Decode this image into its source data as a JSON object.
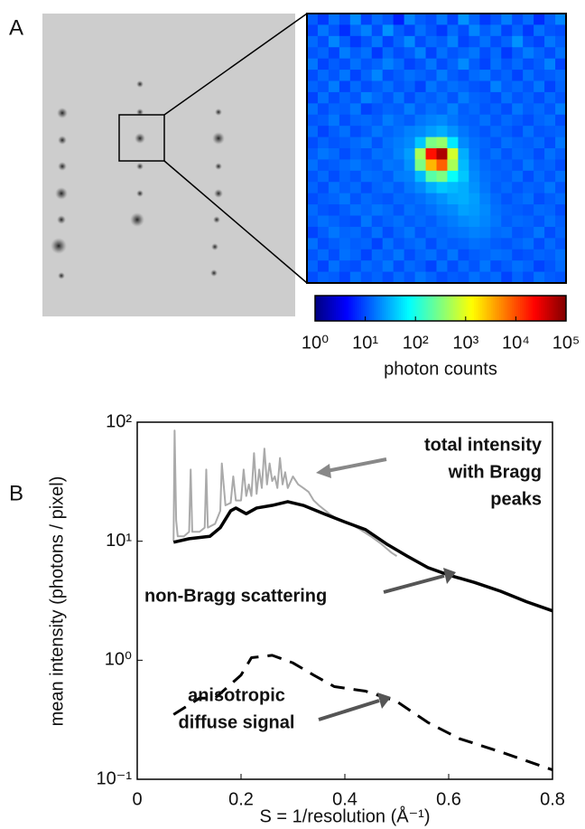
{
  "chart_data": [
    {
      "type": "heatmap",
      "panel": "A",
      "colorbar_label": "photon counts",
      "colormap": "jet",
      "scale": "log",
      "clim": [
        1,
        100000
      ],
      "cticks": [
        {
          "value": 1,
          "label": "10⁰"
        },
        {
          "value": 10,
          "label": "10¹"
        },
        {
          "value": 100,
          "label": "10²"
        },
        {
          "value": 1000,
          "label": "10³"
        },
        {
          "value": 10000,
          "label": "10⁴"
        },
        {
          "value": 100000,
          "label": "10⁵"
        }
      ],
      "matrix": [
        [
          12,
          8,
          15,
          10,
          20,
          9,
          14,
          11,
          6,
          18,
          12,
          10,
          16,
          9,
          22,
          13,
          8,
          11,
          17,
          10,
          14,
          7,
          12,
          19
        ],
        [
          9,
          16,
          11,
          7,
          13,
          18,
          10,
          22,
          12,
          9,
          15,
          11,
          8,
          14,
          10,
          19,
          12,
          16,
          9,
          13,
          8,
          15,
          11,
          10
        ],
        [
          14,
          10,
          19,
          12,
          8,
          11,
          16,
          9,
          13,
          20,
          10,
          14,
          12,
          18,
          9,
          11,
          15,
          10,
          13,
          22,
          11,
          9,
          16,
          12
        ],
        [
          11,
          13,
          9,
          17,
          12,
          15,
          8,
          14,
          10,
          12,
          18,
          9,
          15,
          11,
          13,
          16,
          10,
          14,
          8,
          12,
          17,
          13,
          10,
          15
        ],
        [
          16,
          9,
          12,
          10,
          15,
          11,
          13,
          18,
          14,
          9,
          11,
          16,
          10,
          13,
          20,
          12,
          9,
          15,
          11,
          14,
          10,
          12,
          18,
          9
        ],
        [
          10,
          14,
          11,
          16,
          9,
          13,
          19,
          10,
          12,
          15,
          13,
          11,
          17,
          12,
          10,
          14,
          16,
          11,
          13,
          9,
          15,
          11,
          12,
          14
        ],
        [
          13,
          11,
          17,
          9,
          14,
          10,
          12,
          15,
          11,
          13,
          9,
          16,
          12,
          15,
          13,
          11,
          10,
          18,
          12,
          14,
          11,
          16,
          9,
          13
        ],
        [
          9,
          15,
          10,
          13,
          11,
          18,
          14,
          11,
          16,
          10,
          14,
          12,
          15,
          11,
          17,
          13,
          12,
          10,
          15,
          11,
          13,
          10,
          14,
          11
        ],
        [
          15,
          10,
          13,
          12,
          16,
          9,
          11,
          13,
          12,
          17,
          12,
          15,
          13,
          18,
          12,
          14,
          11,
          13,
          10,
          16,
          12,
          14,
          11,
          17
        ],
        [
          11,
          12,
          16,
          10,
          13,
          14,
          12,
          17,
          14,
          12,
          16,
          18,
          20,
          16,
          13,
          12,
          15,
          11,
          14,
          12,
          10,
          13,
          15,
          10
        ],
        [
          14,
          9,
          12,
          15,
          10,
          12,
          16,
          13,
          15,
          18,
          20,
          25,
          30,
          22,
          16,
          13,
          11,
          14,
          12,
          10,
          15,
          11,
          12,
          13
        ],
        [
          10,
          13,
          11,
          12,
          14,
          16,
          11,
          15,
          17,
          20,
          40,
          300,
          400,
          60,
          20,
          15,
          13,
          11,
          15,
          13,
          12,
          14,
          10,
          16
        ],
        [
          12,
          16,
          14,
          10,
          13,
          11,
          15,
          14,
          18,
          25,
          500,
          20000,
          60000,
          800,
          30,
          16,
          12,
          15,
          11,
          14,
          13,
          10,
          15,
          12
        ],
        [
          15,
          11,
          12,
          14,
          16,
          13,
          12,
          16,
          15,
          22,
          300,
          3000,
          8000,
          500,
          35,
          18,
          14,
          12,
          13,
          11,
          16,
          12,
          13,
          10
        ],
        [
          11,
          14,
          10,
          13,
          11,
          15,
          14,
          12,
          17,
          18,
          35,
          200,
          300,
          80,
          40,
          20,
          15,
          13,
          12,
          15,
          10,
          14,
          11,
          15
        ],
        [
          13,
          10,
          15,
          12,
          14,
          10,
          13,
          15,
          12,
          16,
          20,
          30,
          40,
          35,
          30,
          22,
          16,
          12,
          14,
          11,
          13,
          12,
          16,
          11
        ],
        [
          10,
          12,
          13,
          16,
          11,
          14,
          12,
          11,
          14,
          13,
          15,
          18,
          22,
          28,
          30,
          25,
          18,
          14,
          11,
          13,
          15,
          10,
          12,
          14
        ],
        [
          14,
          11,
          10,
          12,
          15,
          13,
          16,
          14,
          11,
          15,
          13,
          15,
          18,
          20,
          26,
          24,
          20,
          15,
          13,
          12,
          11,
          14,
          13,
          10
        ],
        [
          12,
          15,
          13,
          11,
          10,
          16,
          11,
          13,
          15,
          12,
          14,
          12,
          15,
          17,
          20,
          22,
          19,
          16,
          12,
          14,
          13,
          11,
          15,
          12
        ],
        [
          9,
          12,
          16,
          13,
          14,
          11,
          15,
          10,
          13,
          16,
          11,
          14,
          13,
          15,
          16,
          18,
          17,
          14,
          15,
          11,
          12,
          16,
          10,
          13
        ],
        [
          15,
          10,
          12,
          14,
          12,
          13,
          9,
          15,
          11,
          13,
          15,
          10,
          14,
          12,
          13,
          15,
          14,
          12,
          11,
          13,
          15,
          10,
          14,
          11
        ],
        [
          11,
          14,
          10,
          15,
          13,
          9,
          14,
          12,
          16,
          10,
          13,
          15,
          11,
          16,
          10,
          12,
          13,
          15,
          14,
          10,
          11,
          13,
          12,
          15
        ],
        [
          13,
          9,
          15,
          11,
          10,
          14,
          12,
          16,
          10,
          14,
          12,
          9,
          15,
          10,
          14,
          11,
          16,
          10,
          12,
          15,
          13,
          9,
          11,
          14
        ],
        [
          10,
          13,
          12,
          9,
          15,
          11,
          13,
          10,
          14,
          11,
          16,
          13,
          10,
          12,
          11,
          15,
          12,
          14,
          9,
          13,
          10,
          15,
          12,
          11
        ]
      ]
    },
    {
      "type": "line",
      "panel": "B",
      "yscale": "log",
      "x_label": "S = 1/resolution (Å⁻¹)",
      "y_label": "mean intensity (photons / pixel)",
      "xlim": [
        0,
        0.8
      ],
      "xticks": [
        0,
        0.2,
        0.4,
        0.6,
        0.8
      ],
      "ylim": [
        0.1,
        100
      ],
      "yticks": [
        {
          "value": 0.1,
          "label": "10⁻¹"
        },
        {
          "value": 1,
          "label": "10⁰"
        },
        {
          "value": 10,
          "label": "10¹"
        },
        {
          "value": 100,
          "label": "10²"
        }
      ],
      "series": [
        {
          "label": [
            "total intensity",
            "with Bragg",
            "peaks"
          ],
          "color": "#aaaaaa",
          "dash": "solid",
          "x": [
            0.07,
            0.072,
            0.075,
            0.078,
            0.09,
            0.1,
            0.103,
            0.106,
            0.12,
            0.13,
            0.133,
            0.136,
            0.15,
            0.16,
            0.163,
            0.17,
            0.18,
            0.185,
            0.19,
            0.2,
            0.205,
            0.21,
            0.215,
            0.22,
            0.225,
            0.23,
            0.235,
            0.24,
            0.245,
            0.25,
            0.255,
            0.26,
            0.265,
            0.27,
            0.275,
            0.28,
            0.285,
            0.29,
            0.3,
            0.31,
            0.32,
            0.33,
            0.34,
            0.35,
            0.37,
            0.39,
            0.41,
            0.43,
            0.45,
            0.47,
            0.49,
            0.5
          ],
          "values": [
            10,
            85,
            15,
            11,
            11,
            12,
            40,
            12,
            12,
            13,
            40,
            13,
            14,
            18,
            45,
            20,
            21,
            35,
            22,
            22,
            40,
            24,
            30,
            24,
            55,
            25,
            40,
            28,
            60,
            30,
            45,
            32,
            35,
            28,
            50,
            30,
            38,
            28,
            35,
            30,
            28,
            26,
            22,
            20,
            17,
            15,
            14,
            12.5,
            11,
            9.5,
            8,
            7.5
          ]
        },
        {
          "label": [
            "non-Bragg scattering"
          ],
          "color": "#000000",
          "dash": "solid",
          "x": [
            0.07,
            0.1,
            0.14,
            0.16,
            0.18,
            0.19,
            0.21,
            0.23,
            0.26,
            0.29,
            0.32,
            0.36,
            0.4,
            0.44,
            0.48,
            0.52,
            0.56,
            0.6,
            0.65,
            0.7,
            0.75,
            0.8
          ],
          "values": [
            9.8,
            10.5,
            11,
            13,
            18,
            19,
            17,
            19,
            20,
            21.5,
            20,
            17,
            14.5,
            12.5,
            9.5,
            7.5,
            6,
            5.2,
            4.5,
            3.8,
            3.1,
            2.6
          ]
        },
        {
          "label": [
            "anisotropic",
            "diffuse signal"
          ],
          "color": "#000000",
          "dash": "dashed",
          "x": [
            0.07,
            0.12,
            0.15,
            0.2,
            0.22,
            0.26,
            0.3,
            0.34,
            0.38,
            0.44,
            0.5,
            0.56,
            0.62,
            0.7,
            0.8
          ],
          "values": [
            0.35,
            0.48,
            0.48,
            0.75,
            1.05,
            1.1,
            0.95,
            0.75,
            0.6,
            0.55,
            0.45,
            0.3,
            0.22,
            0.17,
            0.12
          ]
        }
      ]
    }
  ]
}
